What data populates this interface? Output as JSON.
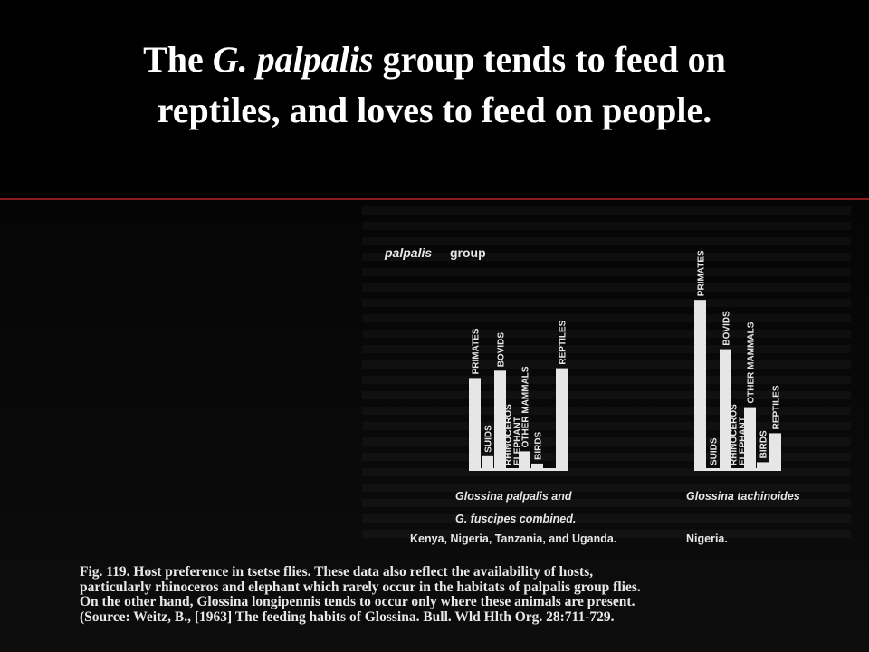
{
  "slide": {
    "title_line1_pre": "The ",
    "title_line1_italic": "G. palpalis",
    "title_line1_post": " group tends to feed on",
    "title_line2": "reptiles, and loves to feed on people."
  },
  "chart_data": [
    {
      "type": "bar",
      "title": "palpalis group",
      "categories": [
        "PRIMATES",
        "SUIDS",
        "BOVIDS",
        "RHINOCEROS ELEPHANT",
        "OTHER MAMMALS",
        "BIRDS",
        "REPTILES"
      ],
      "values": [
        38,
        6,
        41,
        0,
        8,
        3,
        42
      ],
      "ylim": [
        0,
        60
      ],
      "footnote_line1": "Glossina palpalis and",
      "footnote_line2": "G. fuscipes combined.",
      "region": "Kenya, Nigeria, Tanzania, and Uganda."
    },
    {
      "type": "bar",
      "categories": [
        "PRIMATES",
        "SUIDS",
        "BOVIDS",
        "RHINOCEROS ELEPHANT",
        "OTHER MAMMALS",
        "BIRDS",
        "REPTILES"
      ],
      "values": [
        59,
        0,
        42,
        0,
        22,
        3,
        13
      ],
      "ylim": [
        0,
        60
      ],
      "footnote_line1": "Glossina tachinoides",
      "region": "Nigeria."
    }
  ],
  "caption": {
    "line1": "Fig. 119.  Host preference in tsetse flies.  These data also reflect the availability of hosts,",
    "line2": "particularly rhinoceros and elephant which rarely occur in the habitats of palpalis group flies.",
    "line3": "On the other hand, Glossina longipennis tends to occur only where these animals are present.",
    "line4": "(Source: Weitz, B., [1963] The feeding habits of Glossina.  Bull. Wld Hlth Org. 28:711-729."
  },
  "colors": {
    "background": "#000000",
    "divider": "#8b1a1a",
    "bars": "#e6e6e6",
    "text": "#ffffff"
  }
}
